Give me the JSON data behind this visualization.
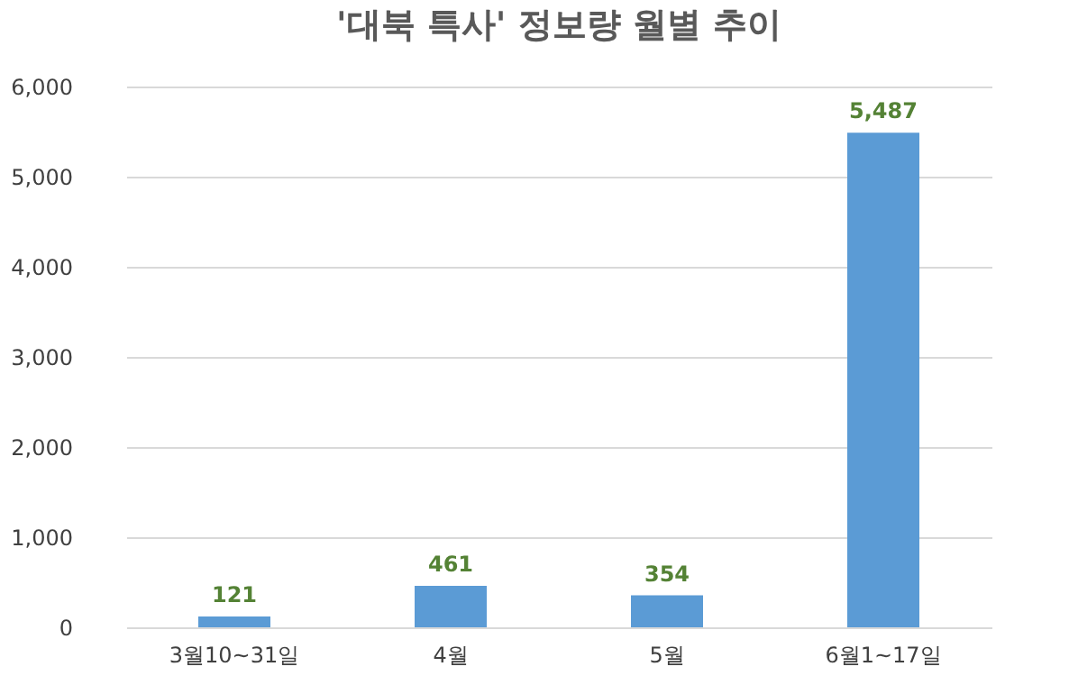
{
  "chart_data": {
    "type": "bar",
    "title": "'대북 특사' 정보량 월별 추이",
    "categories": [
      "3월10~31일",
      "4월",
      "5월",
      "6월1~17일"
    ],
    "values": [
      121,
      461,
      354,
      5487
    ],
    "color": "#5b9bd5",
    "value_labels": [
      "121",
      "461",
      "354",
      "5,487"
    ],
    "ylim": [
      0,
      6000
    ],
    "yticks": [
      0,
      {
        "value": 1000,
        "label": "1,000"
      },
      {
        "value": 2000,
        "label": "2,000"
      },
      {
        "value": 3000,
        "label": "3,000"
      },
      {
        "value": 4000,
        "label": "4,000"
      },
      {
        "value": 5000,
        "label": "5,000"
      },
      {
        "value": 6000,
        "label": "6,000"
      }
    ],
    "grid": "y"
  }
}
